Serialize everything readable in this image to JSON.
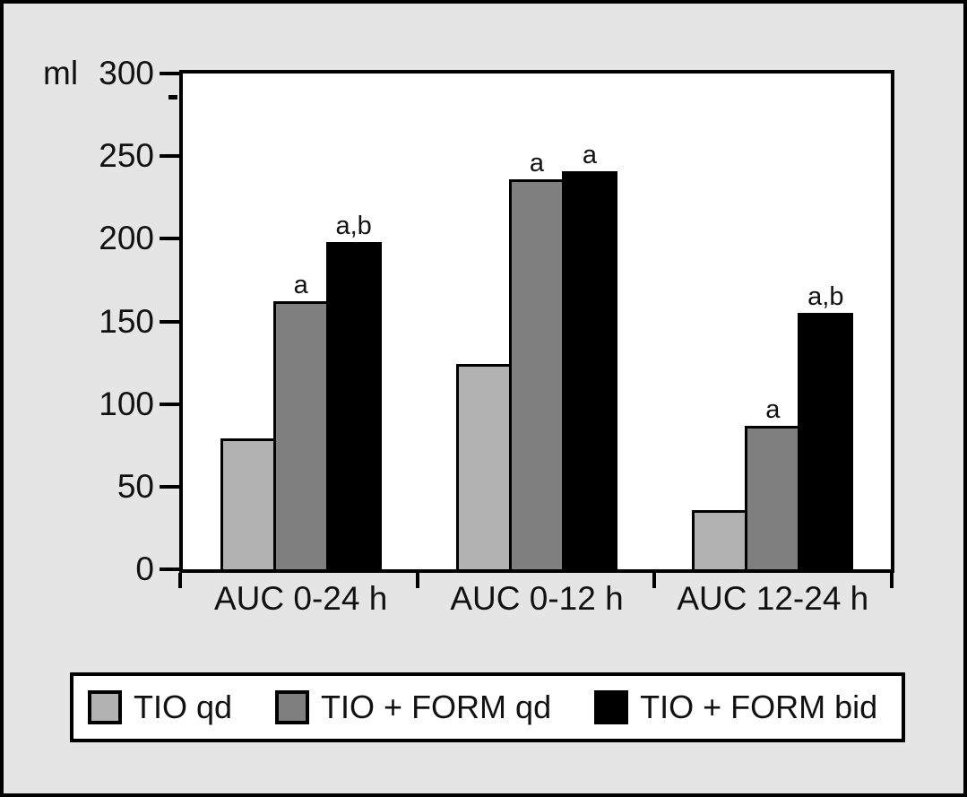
{
  "chart_data": {
    "type": "bar",
    "title": "",
    "ylabel": "ml",
    "xlabel": "",
    "ylim": [
      0,
      300
    ],
    "yticks": [
      0,
      50,
      100,
      150,
      200,
      250,
      300
    ],
    "grid": false,
    "legend_position": "bottom",
    "background_color": "#e5e5e5",
    "plot_background_color": "#ffffff",
    "categories": [
      "AUC 0-24 h",
      "AUC 0-12 h",
      "AUC 12-24 h"
    ],
    "series": [
      {
        "name": "TIO qd",
        "color": "#b2b2b2",
        "values": [
          79,
          124,
          36
        ],
        "annotations": [
          "",
          "",
          ""
        ]
      },
      {
        "name": "TIO + FORM qd",
        "color": "#7f7f7f",
        "values": [
          162,
          236,
          87
        ],
        "annotations": [
          "a",
          "a",
          "a"
        ]
      },
      {
        "name": "TIO + FORM bid",
        "color": "#000000",
        "values": [
          198,
          241,
          155
        ],
        "annotations": [
          "a,b",
          "a",
          "a,b"
        ]
      }
    ]
  }
}
